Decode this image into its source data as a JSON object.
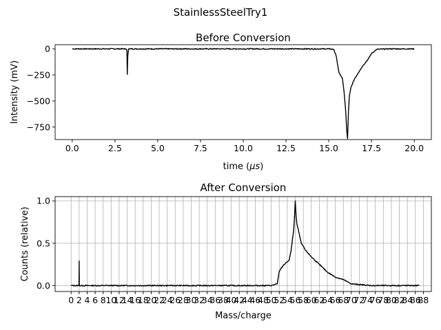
{
  "figure": {
    "suptitle": "StainlessSteelTry1"
  },
  "chart_data": [
    {
      "type": "line",
      "title": "Before Conversion",
      "xlabel": "time (",
      "xlabel_mu": "μs",
      "xlabel_end": ")",
      "ylabel": "Intensity (mV)",
      "xlim": [
        -1,
        21
      ],
      "ylim": [
        -870,
        40
      ],
      "xticks": [
        0.0,
        2.5,
        5.0,
        7.5,
        10.0,
        12.5,
        15.0,
        17.5,
        20.0
      ],
      "xtick_labels": [
        "0.0",
        "2.5",
        "5.0",
        "7.5",
        "10.0",
        "12.5",
        "15.0",
        "17.5",
        "20.0"
      ],
      "yticks": [
        0,
        -250,
        -500,
        -750
      ],
      "ytick_labels": [
        "0",
        "−250",
        "−500",
        "−750"
      ],
      "grid": false,
      "series": [
        {
          "color": "#000000",
          "x": [
            0.0,
            3.1,
            3.2,
            3.22,
            3.25,
            3.3,
            6.0,
            10.0,
            15.0,
            15.3,
            15.45,
            15.55,
            15.6,
            15.7,
            15.8,
            15.9,
            16.0,
            16.05,
            16.1,
            16.15,
            16.2,
            16.3,
            16.5,
            16.8,
            17.0,
            17.3,
            17.5,
            17.8,
            18.5,
            20.0
          ],
          "y": [
            0,
            0,
            -10,
            -245,
            -60,
            0,
            0,
            0,
            0,
            -5,
            -80,
            -180,
            -230,
            -260,
            -280,
            -420,
            -620,
            -780,
            -860,
            -620,
            -460,
            -370,
            -290,
            -210,
            -160,
            -100,
            -45,
            -5,
            0,
            0
          ]
        }
      ]
    },
    {
      "type": "line",
      "title": "After Conversion",
      "xlabel": "Mass/charge",
      "ylabel": "Counts (relative)",
      "xlim": [
        -4,
        90
      ],
      "ylim": [
        -0.07,
        1.05
      ],
      "xticks": [
        0,
        2,
        4,
        6,
        8,
        10,
        12,
        14,
        16,
        18,
        20,
        22,
        24,
        26,
        28,
        30,
        32,
        34,
        36,
        38,
        40,
        42,
        44,
        46,
        48,
        50,
        52,
        54,
        56,
        58,
        60,
        62,
        64,
        66,
        68,
        70,
        72,
        74,
        76,
        78,
        80,
        82,
        84,
        86,
        88
      ],
      "xtick_labels": [
        "0",
        "2",
        "4",
        "6",
        "8",
        "10",
        "12",
        "14",
        "16",
        "18",
        "20",
        "22",
        "24",
        "26",
        "28",
        "30",
        "32",
        "34",
        "36",
        "38",
        "40",
        "42",
        "44",
        "46",
        "48",
        "50",
        "52",
        "54",
        "56",
        "58",
        "60",
        "62",
        "64",
        "66",
        "68",
        "70",
        "72",
        "74",
        "76",
        "78",
        "80",
        "82",
        "84",
        "86",
        "88"
      ],
      "yticks": [
        0.0,
        0.5,
        1.0
      ],
      "ytick_labels": [
        "0.0",
        "0.5",
        "1.0"
      ],
      "grid": true,
      "series": [
        {
          "color": "#000000",
          "x": [
            0.0,
            1.95,
            2.0,
            2.05,
            2.1,
            10.0,
            30.0,
            50.0,
            51.5,
            52.0,
            53.0,
            54.0,
            54.5,
            55.0,
            55.3,
            55.6,
            55.8,
            56.0,
            56.2,
            56.4,
            56.8,
            57.5,
            58.5,
            60.0,
            62.0,
            64.0,
            66.0,
            68.0,
            70.0,
            75.0,
            80.0,
            85.0,
            87.0
          ],
          "y": [
            0.0,
            0.0,
            0.29,
            0.01,
            0.0,
            0.0,
            0.0,
            0.0,
            0.02,
            0.17,
            0.24,
            0.28,
            0.3,
            0.43,
            0.55,
            0.65,
            0.8,
            1.0,
            0.82,
            0.73,
            0.65,
            0.5,
            0.42,
            0.34,
            0.25,
            0.16,
            0.1,
            0.07,
            0.02,
            0.0,
            0.0,
            0.0,
            0.0
          ]
        }
      ]
    }
  ]
}
